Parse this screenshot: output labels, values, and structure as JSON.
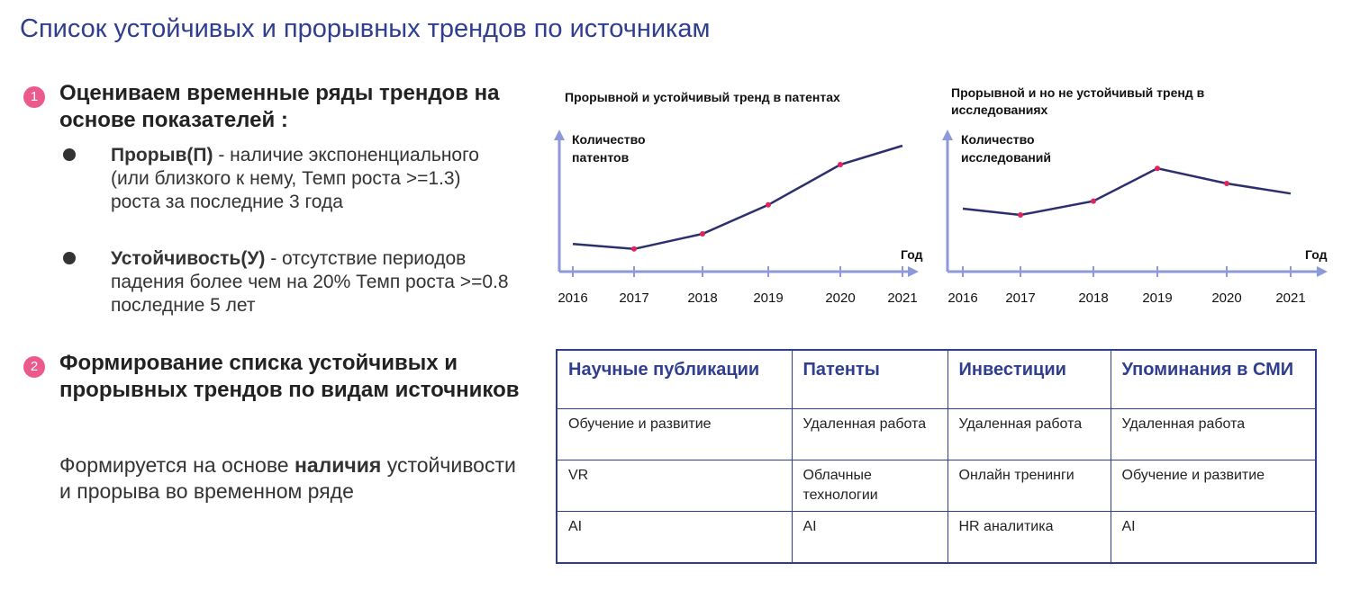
{
  "title": "Список устойчивых и прорывных трендов по источникам",
  "section1": {
    "number": "1",
    "heading": "Оцениваем временные ряды трендов на основе показателей :",
    "bullets": [
      {
        "term": "Прорыв(П)",
        "text": " - наличие экспоненциального (или близкого к нему, Темп роста >=1.3) роста за последние  3 года"
      },
      {
        "term": "Устойчивость(У)",
        "text": " - отсутствие периодов падения более чем на 20% Темп роста >=0.8 последние  5 лет"
      }
    ]
  },
  "section2": {
    "number": "2",
    "heading": "Формирование списка устойчивых и прорывных трендов по видам источников",
    "text_before": "Формируется на основе ",
    "text_bold": "наличия",
    "text_after": " устойчивости и прорыва во временном ряде"
  },
  "colors": {
    "title": "#2f3e8f",
    "axis": "#8e9ad8",
    "line": "#2b2f6e",
    "marker": "#e0245e",
    "badge": "#ec5a8d"
  },
  "chart_data": [
    {
      "type": "line",
      "title": "Прорывной  и устойчивый  тренд  в патентах",
      "ylabel": "Количество патентов",
      "xlabel": "Год",
      "x": [
        "2016",
        "2017",
        "2018",
        "2019",
        "2020",
        "2021"
      ],
      "series": [
        {
          "values": [
            22,
            18,
            30,
            53,
            85,
            100
          ]
        }
      ],
      "ylim": [
        0,
        110
      ],
      "grid": false
    },
    {
      "type": "line",
      "title": "Прорывной  и но не устойчивый  тренд  в исследованиях",
      "ylabel": "Количество исследований",
      "xlabel": "Год",
      "x": [
        "2016",
        "2017",
        "2018",
        "2019",
        "2020",
        "2021"
      ],
      "series": [
        {
          "values": [
            50,
            45,
            56,
            82,
            70,
            62
          ]
        }
      ],
      "ylim": [
        0,
        110
      ],
      "grid": false
    }
  ],
  "table": {
    "headers": [
      "Научные публикации",
      "Патенты",
      "Инвестиции",
      "Упоминания в СМИ"
    ],
    "rows": [
      [
        "Обучение и развитие",
        "Удаленная работа",
        "Удаленная работа",
        "Удаленная работа"
      ],
      [
        "VR",
        "Облачные технологии",
        "Онлайн тренинги",
        "Обучение и развитие"
      ],
      [
        "AI",
        "AI",
        "HR аналитика",
        "AI"
      ]
    ]
  }
}
